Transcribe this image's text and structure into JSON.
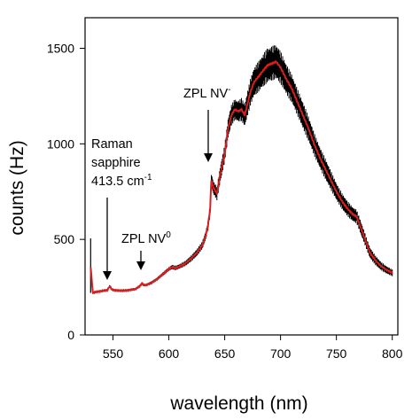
{
  "chart_data": {
    "type": "line",
    "xlabel": "wavelength (nm)",
    "ylabel": "counts (Hz)",
    "xlim": [
      525,
      805
    ],
    "ylim": [
      0,
      1660
    ],
    "x_ticks": [
      550,
      600,
      650,
      700,
      750,
      800
    ],
    "y_ticks": [
      0,
      500,
      1000,
      1500
    ],
    "grid": false,
    "series": [
      {
        "color": "#d42020",
        "error_color": "#000000",
        "x": [
          530,
          532,
          535,
          540,
          545,
          547,
          549,
          552,
          555,
          560,
          565,
          570,
          574,
          576,
          578,
          580,
          585,
          590,
          595,
          600,
          603,
          606,
          610,
          615,
          620,
          625,
          630,
          633,
          635,
          637,
          638,
          640,
          643,
          646,
          650,
          653,
          656,
          659,
          662,
          665,
          668,
          670,
          673,
          676,
          680,
          684,
          688,
          692,
          696,
          700,
          705,
          710,
          715,
          720,
          725,
          730,
          735,
          740,
          745,
          750,
          755,
          760,
          765,
          768,
          770,
          775,
          780,
          785,
          790,
          795,
          800
        ],
        "y": [
          355,
          220,
          225,
          230,
          235,
          255,
          238,
          233,
          232,
          232,
          235,
          240,
          255,
          270,
          260,
          262,
          275,
          295,
          320,
          345,
          355,
          350,
          360,
          375,
          400,
          430,
          470,
          520,
          570,
          660,
          810,
          770,
          740,
          840,
          950,
          1080,
          1150,
          1180,
          1170,
          1180,
          1150,
          1200,
          1270,
          1320,
          1350,
          1380,
          1410,
          1420,
          1430,
          1400,
          1340,
          1290,
          1220,
          1150,
          1080,
          1000,
          930,
          870,
          810,
          750,
          700,
          660,
          630,
          620,
          590,
          510,
          430,
          390,
          360,
          340,
          325
        ],
        "error": [
          0,
          6,
          6,
          6,
          6,
          6,
          6,
          6,
          6,
          6,
          6,
          6,
          6,
          6,
          6,
          6,
          8,
          8,
          10,
          10,
          12,
          12,
          12,
          14,
          16,
          18,
          20,
          22,
          25,
          30,
          35,
          35,
          35,
          40,
          45,
          50,
          55,
          55,
          55,
          60,
          60,
          65,
          70,
          75,
          80,
          85,
          90,
          90,
          90,
          85,
          80,
          75,
          70,
          70,
          65,
          60,
          55,
          55,
          50,
          45,
          42,
          40,
          38,
          36,
          35,
          32,
          28,
          25,
          22,
          20,
          18
        ]
      }
    ],
    "annotations": [
      {
        "label": "raman",
        "lines": [
          "Raman",
          "sapphire",
          "413.5 cm"
        ],
        "superscript": "-1",
        "x": 547,
        "y": 255
      },
      {
        "label": "zpl-nv0",
        "text": "ZPL NV",
        "superscript": "0",
        "x": 576,
        "y": 270
      },
      {
        "label": "zpl-nvminus",
        "text": "ZPL NV",
        "superscript": "-",
        "x": 638,
        "y": 810
      }
    ]
  }
}
